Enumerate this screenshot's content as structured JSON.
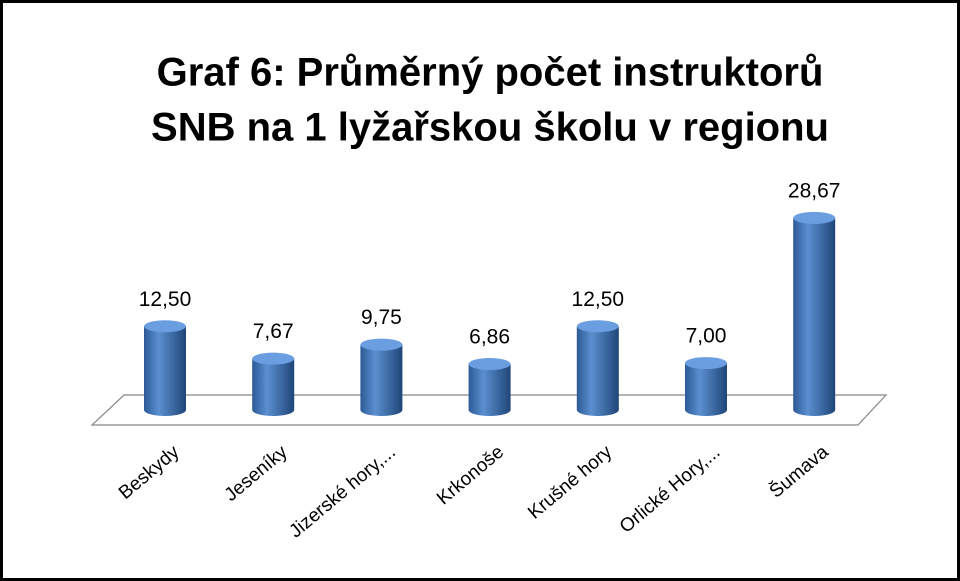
{
  "chart_data": {
    "type": "bar3d",
    "title": [
      "Graf 6: Průměrný počet instruktorů",
      "SNB na 1 lyžařskou školu v regionu"
    ],
    "categories": [
      "Beskydy",
      "Jeseníky",
      "Jizerské hory,...",
      "Krkonoše",
      "Krušné hory",
      "Orlické Hory,...",
      "Šumava"
    ],
    "values": [
      12.5,
      7.67,
      9.75,
      6.86,
      12.5,
      7.0,
      28.67
    ],
    "value_labels": [
      "12,50",
      "7,67",
      "9,75",
      "6,86",
      "12,50",
      "7,00",
      "28,67"
    ],
    "color": "#4a7ebb"
  }
}
